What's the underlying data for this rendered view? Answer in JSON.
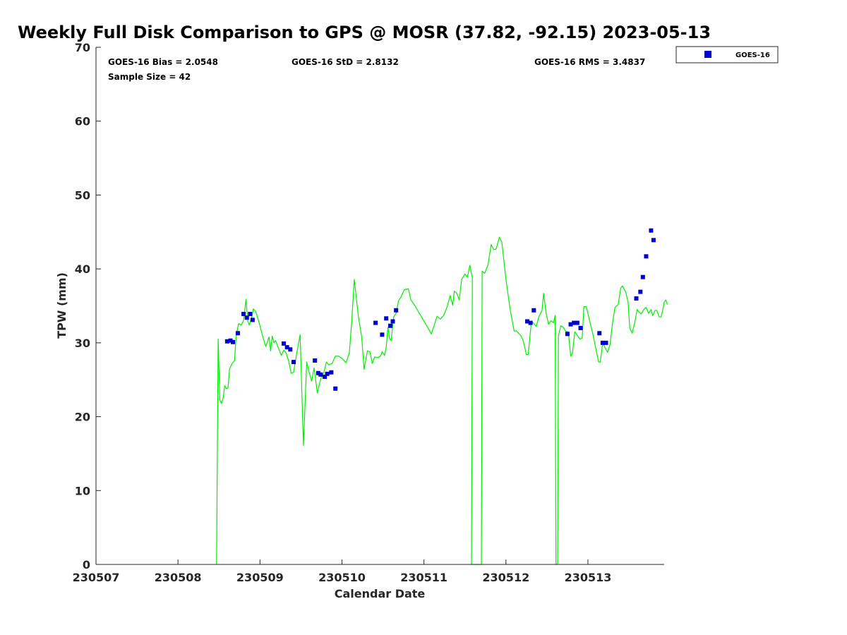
{
  "chart_data": {
    "type": "scatter",
    "title": "Weekly Full Disk Comparison to GPS @ MOSR (37.82, -92.15) 2023-05-13",
    "xlabel": "Calendar Date",
    "ylabel": "TPW (mm)",
    "xlim": [
      230507,
      230513.93
    ],
    "ylim": [
      0,
      70
    ],
    "x_ticks": [
      230507,
      230508,
      230509,
      230510,
      230511,
      230512,
      230513
    ],
    "x_tick_labels": [
      "230507",
      "230508",
      "230509",
      "230510",
      "230511",
      "230512",
      "230513"
    ],
    "y_ticks": [
      0,
      10,
      20,
      30,
      40,
      50,
      60,
      70
    ],
    "y_tick_labels": [
      "0",
      "10",
      "20",
      "30",
      "40",
      "50",
      "60",
      "70"
    ],
    "colors": {
      "gps": "#00ee00",
      "goes": "#0000cc"
    },
    "stats": {
      "bias": "GOES-16 Bias = 2.0548",
      "std": "GOES-16 StD = 2.8132",
      "rms": "GOES-16 RMS = 3.4837",
      "sample": "Sample Size = 42"
    },
    "legend": {
      "position": "top-right-outside",
      "entries": [
        "GOES-16"
      ]
    },
    "series": [
      {
        "name": "GPS",
        "kind": "line",
        "points": [
          [
            230508.47,
            0
          ],
          [
            230508.49,
            30.5
          ],
          [
            230508.51,
            22.3
          ],
          [
            230508.53,
            21.8
          ],
          [
            230508.55,
            22.5
          ],
          [
            230508.57,
            24.2
          ],
          [
            230508.59,
            23.8
          ],
          [
            230508.61,
            23.9
          ],
          [
            230508.63,
            26.5
          ],
          [
            230508.66,
            27.2
          ],
          [
            230508.69,
            27.6
          ],
          [
            230508.71,
            31.0
          ],
          [
            230508.74,
            32.6
          ],
          [
            230508.77,
            32.4
          ],
          [
            230508.8,
            33.0
          ],
          [
            230508.83,
            35.9
          ],
          [
            230508.85,
            33.0
          ],
          [
            230508.87,
            32.4
          ],
          [
            230508.9,
            33.5
          ],
          [
            230508.92,
            34.6
          ],
          [
            230508.95,
            34.2
          ],
          [
            230508.99,
            32.7
          ],
          [
            230509.03,
            31.0
          ],
          [
            230509.07,
            29.5
          ],
          [
            230509.11,
            30.8
          ],
          [
            230509.13,
            28.9
          ],
          [
            230509.15,
            30.9
          ],
          [
            230509.17,
            30.0
          ],
          [
            230509.19,
            30.3
          ],
          [
            230509.22,
            29.4
          ],
          [
            230509.26,
            28.3
          ],
          [
            230509.29,
            29.0
          ],
          [
            230509.32,
            28.6
          ],
          [
            230509.35,
            27.5
          ],
          [
            230509.38,
            25.9
          ],
          [
            230509.41,
            26.0
          ],
          [
            230509.45,
            28.7
          ],
          [
            230509.49,
            31.1
          ],
          [
            230509.53,
            16.1
          ],
          [
            230509.57,
            27.4
          ],
          [
            230509.6,
            26.0
          ],
          [
            230509.63,
            24.8
          ],
          [
            230509.66,
            26.6
          ],
          [
            230509.7,
            23.2
          ],
          [
            230509.74,
            25.1
          ],
          [
            230509.78,
            26.0
          ],
          [
            230509.81,
            27.4
          ],
          [
            230509.84,
            27.0
          ],
          [
            230509.88,
            27.2
          ],
          [
            230509.92,
            28.2
          ],
          [
            230509.96,
            28.2
          ],
          [
            230510.0,
            27.9
          ],
          [
            230510.05,
            27.3
          ],
          [
            230510.09,
            28.6
          ],
          [
            230510.12,
            33.0
          ],
          [
            230510.15,
            38.6
          ],
          [
            230510.2,
            33.6
          ],
          [
            230510.24,
            30.8
          ],
          [
            230510.27,
            26.4
          ],
          [
            230510.31,
            28.9
          ],
          [
            230510.34,
            28.8
          ],
          [
            230510.37,
            27.2
          ],
          [
            230510.4,
            28.1
          ],
          [
            230510.44,
            28.0
          ],
          [
            230510.47,
            28.2
          ],
          [
            230510.49,
            28.8
          ],
          [
            230510.52,
            28.3
          ],
          [
            230510.54,
            29.4
          ],
          [
            230510.56,
            32.1
          ],
          [
            230510.58,
            30.6
          ],
          [
            230510.6,
            30.3
          ],
          [
            230510.63,
            33.5
          ],
          [
            230510.66,
            34.0
          ],
          [
            230510.69,
            35.7
          ],
          [
            230510.72,
            36.2
          ],
          [
            230510.76,
            37.2
          ],
          [
            230510.81,
            37.3
          ],
          [
            230510.84,
            35.8
          ],
          [
            230510.89,
            35.0
          ],
          [
            230510.97,
            33.5
          ],
          [
            230511.05,
            32.0
          ],
          [
            230511.09,
            31.2
          ],
          [
            230511.16,
            33.6
          ],
          [
            230511.2,
            33.2
          ],
          [
            230511.24,
            33.7
          ],
          [
            230511.28,
            34.8
          ],
          [
            230511.32,
            36.4
          ],
          [
            230511.35,
            35.1
          ],
          [
            230511.37,
            37.0
          ],
          [
            230511.4,
            36.7
          ],
          [
            230511.43,
            35.8
          ],
          [
            230511.46,
            38.6
          ],
          [
            230511.5,
            39.3
          ],
          [
            230511.53,
            38.9
          ],
          [
            230511.56,
            40.5
          ],
          [
            230511.59,
            38.8
          ],
          [
            230511.58,
            0
          ],
          [
            230511.7,
            0
          ],
          [
            230511.71,
            39.7
          ],
          [
            230511.74,
            39.4
          ],
          [
            230511.78,
            40.5
          ],
          [
            230511.82,
            43.3
          ],
          [
            230511.85,
            42.6
          ],
          [
            230511.88,
            42.7
          ],
          [
            230511.92,
            44.3
          ],
          [
            230511.95,
            43.6
          ],
          [
            230512.0,
            38.6
          ],
          [
            230512.05,
            34.6
          ],
          [
            230512.1,
            31.6
          ],
          [
            230512.13,
            31.6
          ],
          [
            230512.18,
            31.0
          ],
          [
            230512.21,
            30.3
          ],
          [
            230512.25,
            28.4
          ],
          [
            230512.27,
            28.4
          ],
          [
            230512.29,
            30.5
          ],
          [
            230512.31,
            32.9
          ],
          [
            230512.34,
            32.6
          ],
          [
            230512.37,
            32.2
          ],
          [
            230512.4,
            33.5
          ],
          [
            230512.44,
            34.4
          ],
          [
            230512.46,
            36.7
          ],
          [
            230512.49,
            34.0
          ],
          [
            230512.52,
            32.5
          ],
          [
            230512.55,
            33.0
          ],
          [
            230512.58,
            32.7
          ],
          [
            230512.6,
            33.7
          ],
          [
            230512.61,
            0
          ],
          [
            230512.63,
            0
          ],
          [
            230512.64,
            31.0
          ],
          [
            230512.67,
            32.3
          ],
          [
            230512.7,
            32.1
          ],
          [
            230512.73,
            31.5
          ],
          [
            230512.76,
            31.5
          ],
          [
            230512.79,
            28.2
          ],
          [
            230512.81,
            28.5
          ],
          [
            230512.84,
            31.5
          ],
          [
            230512.87,
            31.0
          ],
          [
            230512.9,
            30.5
          ],
          [
            230512.93,
            30.6
          ],
          [
            230512.95,
            34.9
          ],
          [
            230512.98,
            34.9
          ],
          [
            230513.02,
            33.0
          ],
          [
            230513.06,
            31.2
          ],
          [
            230513.1,
            29.0
          ],
          [
            230513.13,
            27.4
          ],
          [
            230513.15,
            27.4
          ],
          [
            230513.18,
            30.0
          ],
          [
            230513.21,
            29.3
          ],
          [
            230513.24,
            28.7
          ],
          [
            230513.27,
            29.8
          ],
          [
            230513.3,
            32.7
          ],
          [
            230513.33,
            34.8
          ],
          [
            230513.37,
            35.2
          ],
          [
            230513.4,
            37.4
          ],
          [
            230513.42,
            37.7
          ],
          [
            230513.46,
            36.9
          ],
          [
            230513.49,
            35.5
          ],
          [
            230513.51,
            32.0
          ],
          [
            230513.54,
            31.3
          ],
          [
            230513.57,
            32.7
          ],
          [
            230513.6,
            34.5
          ],
          [
            230513.62,
            34.2
          ],
          [
            230513.65,
            33.9
          ],
          [
            230513.68,
            34.5
          ],
          [
            230513.71,
            34.8
          ],
          [
            230513.74,
            34.0
          ],
          [
            230513.77,
            34.5
          ],
          [
            230513.79,
            33.7
          ],
          [
            230513.82,
            34.4
          ],
          [
            230513.84,
            34.4
          ],
          [
            230513.87,
            33.5
          ],
          [
            230513.89,
            33.5
          ],
          [
            230513.91,
            34.3
          ],
          [
            230513.93,
            35.5
          ],
          [
            230513.95,
            35.8
          ],
          [
            230513.97,
            35.2
          ]
        ]
      },
      {
        "name": "GOES-16",
        "kind": "marker",
        "points": [
          [
            230508.6,
            30.2
          ],
          [
            230508.64,
            30.3
          ],
          [
            230508.67,
            30.1
          ],
          [
            230508.73,
            31.3
          ],
          [
            230508.8,
            33.9
          ],
          [
            230508.84,
            33.4
          ],
          [
            230508.88,
            33.9
          ],
          [
            230508.91,
            33.1
          ],
          [
            230509.29,
            29.9
          ],
          [
            230509.33,
            29.4
          ],
          [
            230509.37,
            29.1
          ],
          [
            230509.41,
            27.4
          ],
          [
            230509.67,
            27.6
          ],
          [
            230509.71,
            25.9
          ],
          [
            230509.74,
            25.7
          ],
          [
            230509.79,
            25.4
          ],
          [
            230509.82,
            25.8
          ],
          [
            230509.87,
            26.0
          ],
          [
            230509.92,
            23.8
          ],
          [
            230510.41,
            32.7
          ],
          [
            230510.49,
            31.1
          ],
          [
            230510.54,
            33.3
          ],
          [
            230510.59,
            32.3
          ],
          [
            230510.62,
            32.9
          ],
          [
            230510.66,
            34.4
          ],
          [
            230512.26,
            32.9
          ],
          [
            230512.3,
            32.7
          ],
          [
            230512.34,
            34.4
          ],
          [
            230512.75,
            31.2
          ],
          [
            230512.79,
            32.5
          ],
          [
            230512.83,
            32.7
          ],
          [
            230512.87,
            32.7
          ],
          [
            230512.91,
            32.0
          ],
          [
            230513.14,
            31.3
          ],
          [
            230513.18,
            30.0
          ],
          [
            230513.22,
            30.0
          ],
          [
            230513.59,
            36.0
          ],
          [
            230513.64,
            36.9
          ],
          [
            230513.67,
            38.9
          ],
          [
            230513.71,
            41.7
          ],
          [
            230513.77,
            45.2
          ],
          [
            230513.8,
            43.9
          ]
        ]
      }
    ]
  }
}
